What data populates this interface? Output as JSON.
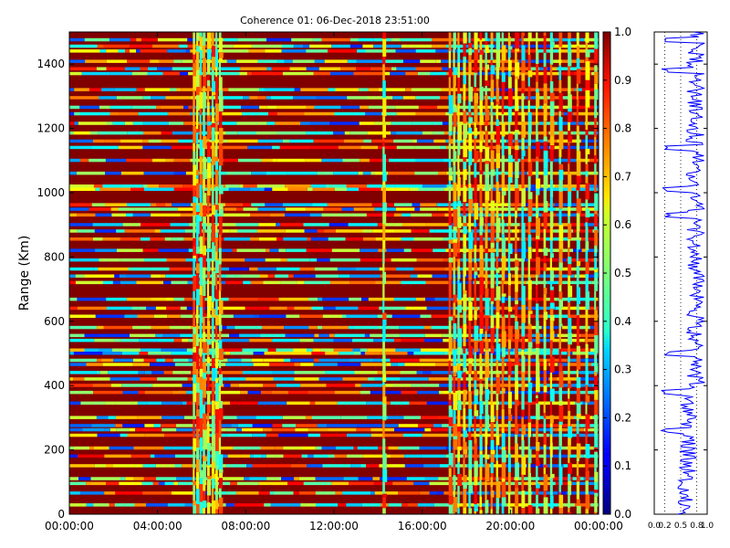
{
  "chart_data": [
    {
      "type": "heatmap",
      "title": "Coherence 01: 06-Dec-2018 23:51:00",
      "xlabel": "",
      "ylabel": "Range (Km)",
      "x_ticks": [
        "00:00:00",
        "04:00:00",
        "08:00:00",
        "12:00:00",
        "16:00:00",
        "20:00:00",
        "00:00:00"
      ],
      "y_ticks": [
        0,
        200,
        400,
        600,
        800,
        1000,
        1200,
        1400
      ],
      "xlim_hours": [
        0,
        24
      ],
      "ylim": [
        0,
        1500
      ],
      "colormap": "jet",
      "clim": [
        0.0,
        1.0
      ],
      "colorbar_ticks": [
        "0.0",
        "0.1",
        "0.2",
        "0.3",
        "0.4",
        "0.5",
        "0.6",
        "0.7",
        "0.8",
        "0.9",
        "1.0"
      ],
      "low_coherence_range_bands_km": [
        28,
        65,
        95,
        110,
        150,
        180,
        205,
        245,
        262,
        275,
        300,
        345,
        378,
        400,
        420,
        440,
        465,
        478,
        500,
        510,
        540,
        555,
        580,
        615,
        640,
        668,
        720,
        740,
        762,
        790,
        820,
        855,
        880,
        900,
        930,
        948,
        962,
        1010,
        1020,
        1060,
        1100,
        1140,
        1160,
        1185,
        1215,
        1245,
        1265,
        1295,
        1320,
        1370,
        1385,
        1408,
        1440,
        1455,
        1475
      ],
      "low_coherence_time_bands_hours": [
        5.6,
        5.75,
        5.9,
        6.05,
        6.25,
        6.45,
        6.62,
        6.78,
        14.2,
        17.2,
        17.4,
        17.6,
        17.85,
        18.1,
        18.35,
        18.6,
        18.85,
        19.1,
        19.35,
        19.6,
        19.9,
        20.2,
        20.5,
        20.8,
        21.15,
        21.5,
        21.8,
        22.2,
        22.6,
        23.0,
        23.4,
        23.8
      ]
    },
    {
      "type": "line",
      "title": "",
      "x_ticks": [
        "0.0",
        "0.2",
        "0.5",
        "0.8",
        "1.0"
      ],
      "xlim": [
        0,
        1
      ],
      "ylim": [
        0,
        1500
      ],
      "gridlines_x": [
        0.2,
        0.5,
        0.8
      ],
      "line_color": "#0000ff",
      "y_step_km": 5,
      "baseline_below_400km": 0.62,
      "baseline_above_400km": 0.78,
      "dip_ranges_km": [
        260,
        380,
        500,
        930,
        1010,
        1140,
        1380,
        1475
      ]
    }
  ]
}
